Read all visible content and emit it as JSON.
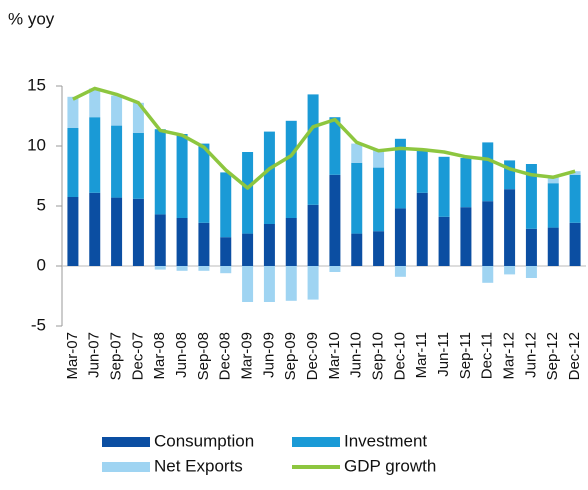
{
  "chart_data": {
    "type": "stacked-bar-line",
    "y_label": "% yoy",
    "categories": [
      "Mar-07",
      "Jun-07",
      "Sep-07",
      "Dec-07",
      "Mar-08",
      "Jun-08",
      "Sep-08",
      "Dec-08",
      "Mar-09",
      "Jun-09",
      "Sep-09",
      "Dec-09",
      "Mar-10",
      "Jun-10",
      "Sep-10",
      "Dec-10",
      "Mar-11",
      "Jun-11",
      "Sep-11",
      "Dec-11",
      "Mar-12",
      "Jun-12",
      "Sep-12",
      "Dec-12"
    ],
    "series": [
      {
        "name": "Consumption",
        "color": "#0b4ea2",
        "kind": "bar",
        "values": [
          5.75,
          6.1,
          5.7,
          5.6,
          4.3,
          4.0,
          3.6,
          2.4,
          2.7,
          3.5,
          4.0,
          5.1,
          7.6,
          2.7,
          2.9,
          4.8,
          6.1,
          4.1,
          4.9,
          5.4,
          6.4,
          3.1,
          3.2,
          3.6
        ]
      },
      {
        "name": "Investment",
        "color": "#1a9ad6",
        "kind": "bar",
        "values": [
          5.75,
          6.3,
          6.0,
          5.5,
          7.1,
          7.0,
          6.6,
          5.4,
          6.8,
          7.7,
          8.1,
          9.2,
          4.8,
          5.9,
          5.3,
          5.8,
          3.6,
          5.0,
          4.1,
          4.9,
          2.4,
          5.4,
          3.7,
          4.0
        ]
      },
      {
        "name": "Net Exports",
        "color": "#9fd4f2",
        "kind": "bar",
        "values": [
          2.6,
          2.4,
          2.5,
          2.5,
          -0.3,
          -0.4,
          -0.4,
          -0.6,
          -3.0,
          -3.0,
          -2.9,
          -2.8,
          -0.5,
          1.6,
          1.5,
          -0.9,
          0.1,
          0,
          0,
          -1.4,
          -0.7,
          -1.0,
          0.5,
          0.3
        ]
      },
      {
        "name": "GDP growth",
        "color": "#8dc63f",
        "kind": "line",
        "values": [
          13.9,
          14.8,
          14.3,
          13.6,
          11.3,
          10.9,
          9.9,
          8.0,
          6.5,
          8.1,
          9.2,
          11.6,
          12.2,
          10.3,
          9.6,
          9.8,
          9.7,
          9.5,
          9.1,
          8.9,
          8.1,
          7.6,
          7.4,
          7.9
        ]
      }
    ],
    "ylim": [
      -5,
      15
    ],
    "yticks": [
      -5,
      0,
      5,
      10,
      15
    ],
    "grid": false
  }
}
